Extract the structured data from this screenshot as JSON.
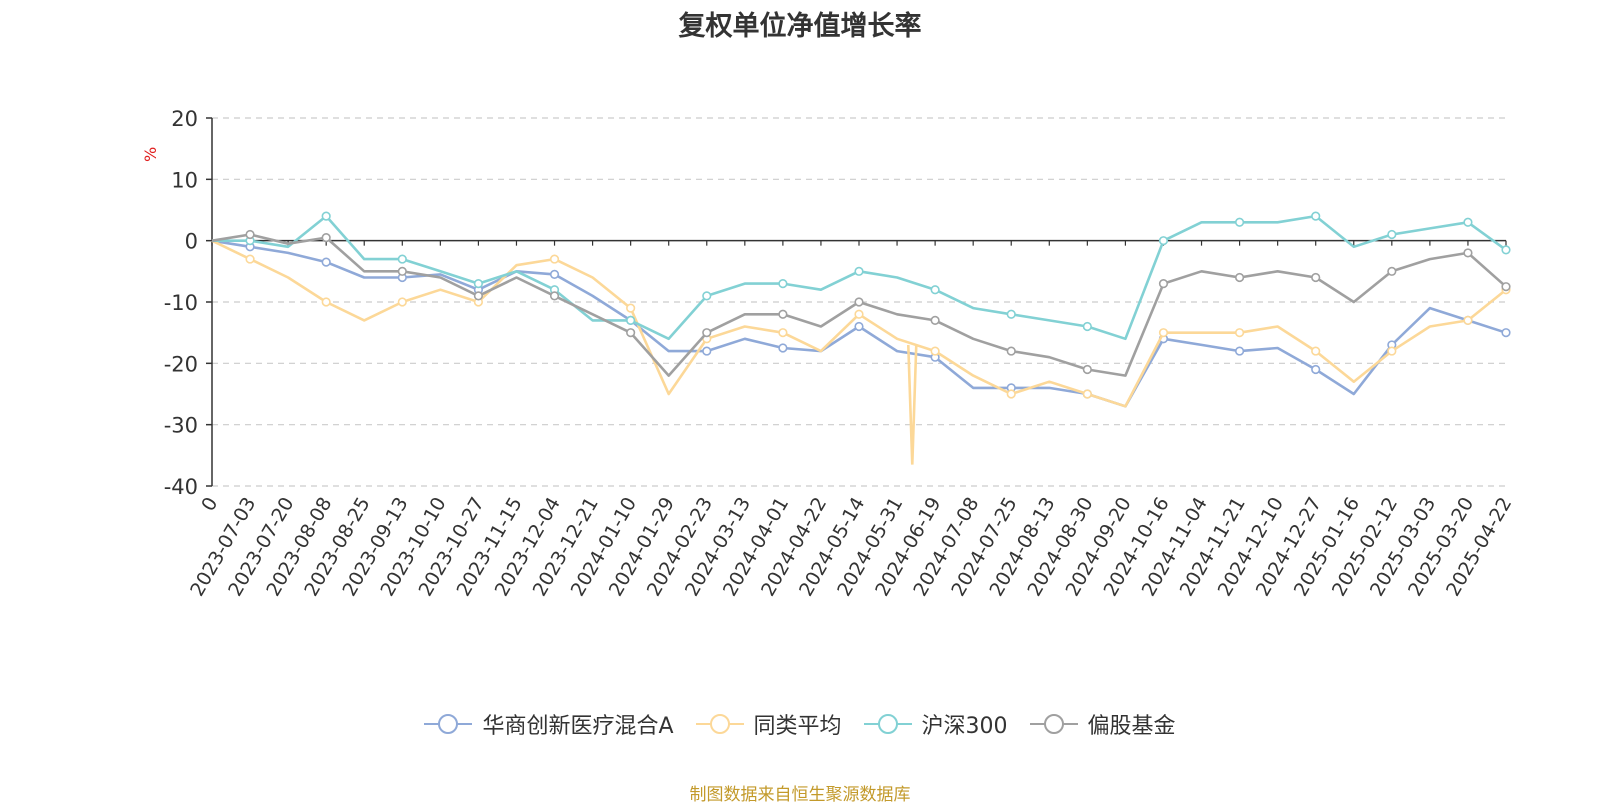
{
  "chart_data": {
    "type": "line",
    "title": "复权单位净值增长率",
    "ylabel": "%",
    "xlabel": "",
    "ylim": [
      -40,
      20
    ],
    "yticks": [
      20,
      10,
      0,
      -10,
      -20,
      -30,
      -40
    ],
    "grid": true,
    "legend_position": "bottom",
    "x_ticks": [
      "0",
      "2023-07-03",
      "2023-07-20",
      "2023-08-08",
      "2023-08-25",
      "2023-09-13",
      "2023-10-10",
      "2023-10-27",
      "2023-11-15",
      "2023-12-04",
      "2023-12-21",
      "2024-01-10",
      "2024-01-29",
      "2024-02-23",
      "2024-03-13",
      "2024-04-01",
      "2024-04-22",
      "2024-05-14",
      "2024-05-31",
      "2024-06-19",
      "2024-07-08",
      "2024-07-25",
      "2024-08-13",
      "2024-08-30",
      "2024-09-20",
      "2024-10-16",
      "2024-11-04",
      "2024-11-21",
      "2024-12-10",
      "2024-12-27",
      "2025-01-16",
      "2025-02-12",
      "2025-03-03",
      "2025-03-20",
      "2025-04-22"
    ],
    "series": [
      {
        "name": "华商创新医疗混合A",
        "color": "#8fa9d8",
        "values": [
          0,
          -1,
          -2,
          -3.5,
          -6,
          -6,
          -5.5,
          -8,
          -5,
          -5.5,
          -9,
          -13,
          -18,
          -18,
          -16,
          -17.5,
          -18,
          -14,
          -18,
          -19,
          -24,
          -24,
          -24,
          -25,
          -27,
          -16,
          -17,
          -18,
          -17.5,
          -21,
          -25,
          -17,
          -11,
          -13,
          -15
        ]
      },
      {
        "name": "同类平均",
        "color": "#fcd898",
        "values": [
          0,
          -3,
          -6,
          -10,
          -13,
          -10,
          -8,
          -10,
          -4,
          -3,
          -6,
          -11,
          -25,
          -16,
          -14,
          -15,
          -18,
          -12,
          -16,
          -18,
          -22,
          -25,
          -23,
          -25,
          -27,
          -15,
          -15,
          -15,
          -14,
          -18,
          -23,
          -18,
          -14,
          -13,
          -8
        ]
      },
      {
        "name": "沪深300",
        "color": "#82d1d4",
        "values": [
          0,
          0,
          -1,
          4,
          -3,
          -3,
          -5,
          -7,
          -5,
          -8,
          -13,
          -13,
          -16,
          -9,
          -7,
          -7,
          -8,
          -5,
          -6,
          -8,
          -11,
          -12,
          -13,
          -14,
          -16,
          0,
          3,
          3,
          3,
          4,
          -1,
          1,
          2,
          3,
          -1.5
        ]
      },
      {
        "name": "偏股基金",
        "color": "#a0a0a0",
        "values": [
          0,
          1,
          -0.5,
          0.5,
          -5,
          -5,
          -6,
          -9,
          -6,
          -9,
          -12,
          -15,
          -22,
          -15,
          -12,
          -12,
          -14,
          -10,
          -12,
          -13,
          -16,
          -18,
          -19,
          -21,
          -22,
          -7,
          -5,
          -6,
          -5,
          -6,
          -10,
          -5,
          -3,
          -2,
          -7.5
        ]
      }
    ],
    "annotations": {
      "dip_value": -36.5
    }
  },
  "legend": {
    "items": [
      "华商创新医疗混合A",
      "同类平均",
      "沪深300",
      "偏股基金"
    ]
  },
  "footer": {
    "source_note": "制图数据来自恒生聚源数据库"
  }
}
